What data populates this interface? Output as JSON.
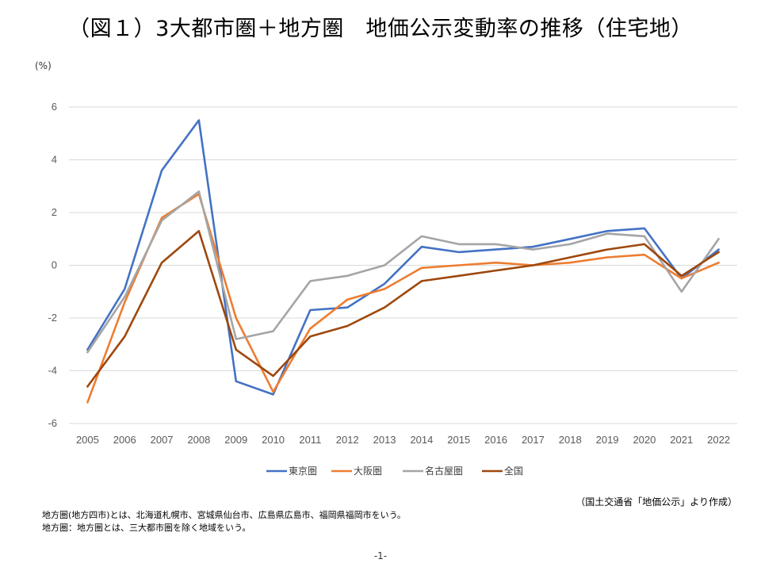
{
  "title": "（図１）3大都市圏＋地方圏　地価公示変動率の推移（住宅地）",
  "chart_data": {
    "type": "line",
    "title": "",
    "ylabel": "(%)",
    "xlabel": "",
    "ylim": [
      -6,
      6
    ],
    "yticks": [
      6,
      4,
      2,
      0,
      -2,
      -4,
      -6
    ],
    "grid": true,
    "legend_position": "bottom",
    "categories": [
      "2005",
      "2006",
      "2007",
      "2008",
      "2009",
      "2010",
      "2011",
      "2012",
      "2013",
      "2014",
      "2015",
      "2016",
      "2017",
      "2018",
      "2019",
      "2020",
      "2021",
      "2022"
    ],
    "series": [
      {
        "name": "東京圏",
        "color": "#4472C4",
        "values": [
          -3.2,
          -0.9,
          3.6,
          5.5,
          -4.4,
          -4.9,
          -1.7,
          -1.6,
          -0.7,
          0.7,
          0.5,
          0.6,
          0.7,
          1.0,
          1.3,
          1.4,
          -0.5,
          0.6
        ]
      },
      {
        "name": "大阪圏",
        "color": "#ED7D31",
        "values": [
          -5.2,
          -1.4,
          1.8,
          2.7,
          -2.0,
          -4.8,
          -2.4,
          -1.3,
          -0.9,
          -0.1,
          0.0,
          0.1,
          0.0,
          0.1,
          0.3,
          0.4,
          -0.5,
          0.1
        ]
      },
      {
        "name": "名古屋圏",
        "color": "#A5A5A5",
        "values": [
          -3.3,
          -1.2,
          1.7,
          2.8,
          -2.8,
          -2.5,
          -0.6,
          -0.4,
          0.0,
          1.1,
          0.8,
          0.8,
          0.6,
          0.8,
          1.2,
          1.1,
          -1.0,
          1.0
        ]
      },
      {
        "name": "全国",
        "color": "#9E480E",
        "values": [
          -4.6,
          -2.7,
          0.1,
          1.3,
          -3.2,
          -4.2,
          -2.7,
          -2.3,
          -1.6,
          -0.6,
          -0.4,
          -0.2,
          0.0,
          0.3,
          0.6,
          0.8,
          -0.4,
          0.5
        ]
      }
    ]
  },
  "source": "（国土交通省「地価公示」より作成）",
  "notes": [
    "地方圏(地方四市)とは、北海道札幌市、宮城県仙台市、広島県広島市、福岡県福岡市をいう。",
    "地方圏：地方圏とは、三大都市圏を除く地域をいう。"
  ],
  "page_number": "-1-"
}
